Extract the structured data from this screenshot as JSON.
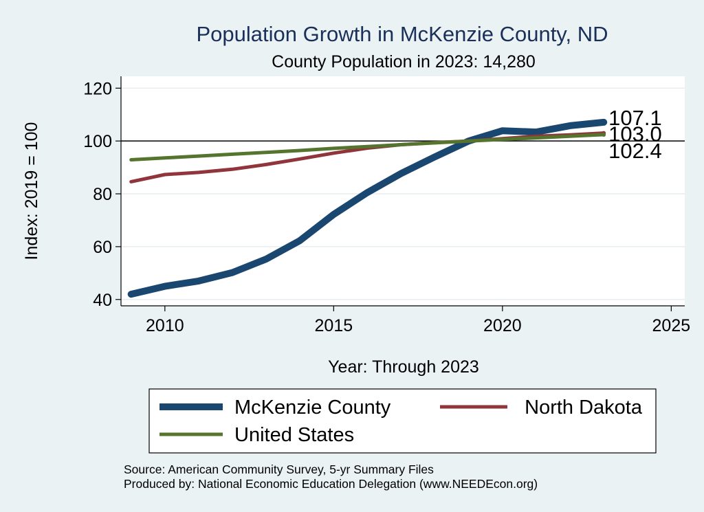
{
  "chart_data": {
    "type": "line",
    "title": "Population Growth in McKenzie County, ND",
    "subtitle": "County Population in 2023: 14,280",
    "xlabel": "Year: Through 2023",
    "ylabel": "Index: 2019 = 100",
    "xlim": [
      2008.7,
      2025.4
    ],
    "ylim": [
      37.6,
      124.5
    ],
    "x_ticks": [
      2010,
      2015,
      2020,
      2025
    ],
    "y_ticks": [
      40,
      60,
      80,
      100,
      120
    ],
    "reference_line": 100,
    "x": [
      2009,
      2010,
      2011,
      2012,
      2013,
      2014,
      2015,
      2016,
      2017,
      2018,
      2019,
      2020,
      2021,
      2022,
      2023
    ],
    "series": [
      {
        "name": "McKenzie  County",
        "color": "#1a476f",
        "values": [
          42.0,
          45.0,
          47.0,
          50.2,
          55.3,
          62.3,
          72.2,
          80.5,
          87.7,
          94.0,
          100.0,
          103.9,
          103.4,
          105.8,
          107.1
        ],
        "end_label": "107.1"
      },
      {
        "name": "North Dakota",
        "color": "#90353b",
        "values": [
          84.6,
          87.3,
          88.1,
          89.3,
          91.1,
          93.2,
          95.4,
          97.3,
          98.6,
          99.4,
          100.0,
          100.9,
          101.8,
          102.3,
          103.0
        ],
        "end_label": "103.0"
      },
      {
        "name": "United States",
        "color": "#55752f",
        "values": [
          92.9,
          93.6,
          94.3,
          95.0,
          95.7,
          96.4,
          97.2,
          97.9,
          98.6,
          99.3,
          100.0,
          100.6,
          101.2,
          101.8,
          102.4
        ],
        "end_label": "102.4"
      }
    ],
    "legend_position": "bottom",
    "grid": true
  },
  "source_lines": [
    "Source: American Community Survey, 5-yr Summary Files",
    "Produced by: National Economic Education Delegation (www.NEEDEcon.org)"
  ]
}
